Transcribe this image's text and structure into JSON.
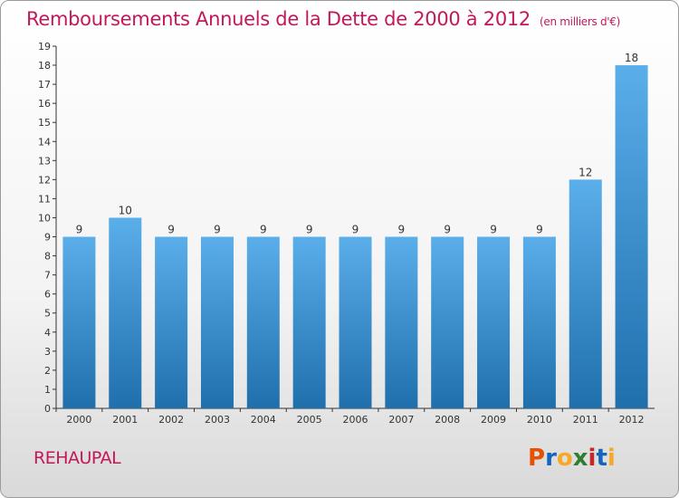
{
  "title": "Remboursements Annuels de la Dette de 2000 à 2012",
  "unit_note": "(en milliers d'€)",
  "location": "REHAUPAL",
  "brand": {
    "letters": [
      "P",
      "r",
      "o",
      "x",
      "i",
      "t",
      "i"
    ],
    "colors": [
      "#e65100",
      "#1565c0",
      "#f9a825",
      "#2e7d32",
      "#c62828",
      "#1565c0",
      "#f9a825"
    ]
  },
  "colors": {
    "bar_top": "#5aaeea",
    "bar_bottom": "#1f6fad",
    "title": "#c2185b"
  },
  "chart_data": {
    "type": "bar",
    "categories": [
      "2000",
      "2001",
      "2002",
      "2003",
      "2004",
      "2005",
      "2006",
      "2007",
      "2008",
      "2009",
      "2010",
      "2011",
      "2012"
    ],
    "values": [
      9,
      10,
      9,
      9,
      9,
      9,
      9,
      9,
      9,
      9,
      9,
      12,
      18
    ],
    "ylim": [
      0,
      19
    ],
    "yticks": [
      0,
      1,
      2,
      3,
      4,
      5,
      6,
      7,
      8,
      9,
      10,
      11,
      12,
      13,
      14,
      15,
      16,
      17,
      18,
      19
    ],
    "grid": false,
    "data_labels": true
  }
}
